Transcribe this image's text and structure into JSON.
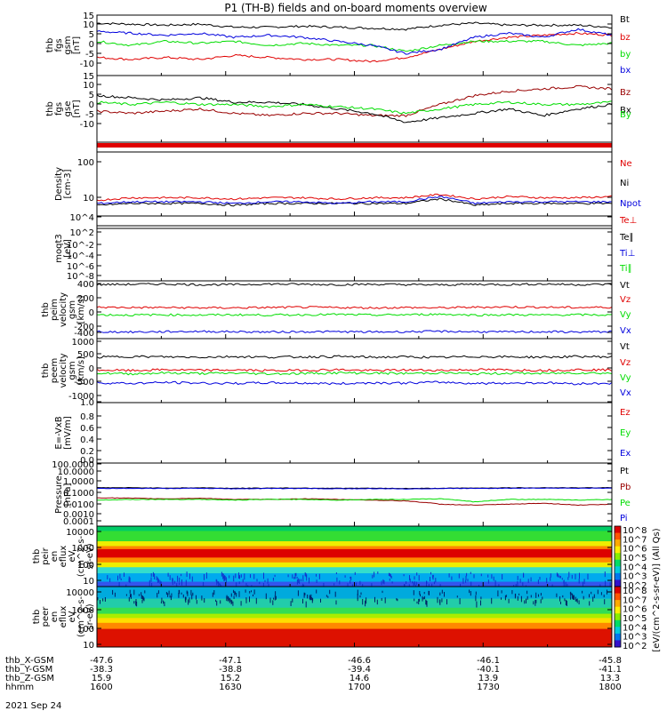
{
  "title": "P1 (TH-B) fields and on-board moments overview",
  "date_label": "2021 Sep 24",
  "colors": {
    "black": "#000000",
    "red": "#e00000",
    "green": "#00dd00",
    "blue": "#0000dd",
    "darkred": "#990000"
  },
  "ephemeris": {
    "rows": [
      {
        "label": "thb_X-GSM",
        "values": [
          "-47.6",
          "-47.1",
          "-46.6",
          "-46.1",
          "-45.8"
        ]
      },
      {
        "label": "thb_Y-GSM",
        "values": [
          "-38.3",
          "-38.8",
          "-39.4",
          "-40.1",
          "-41.1"
        ]
      },
      {
        "label": "thb_Z-GSM",
        "values": [
          "15.9",
          "15.2",
          "14.6",
          "13.9",
          "13.3"
        ]
      },
      {
        "label": "hhmm",
        "values": [
          "1600",
          "1630",
          "1700",
          "1730",
          "1800"
        ]
      }
    ]
  },
  "chart_data": [
    {
      "type": "line",
      "id": "fgs_gsm",
      "ylabel": [
        "thb",
        "fgs",
        "gsm",
        "[nT]"
      ],
      "yticks": [
        "15",
        "10",
        "5",
        "0",
        "-5",
        "-10"
      ],
      "ylim": [
        -15,
        15
      ],
      "legend": [
        {
          "text": "Bt",
          "color": "black"
        },
        {
          "text": "bz",
          "color": "red"
        },
        {
          "text": "by",
          "color": "green"
        },
        {
          "text": "bx",
          "color": "blue"
        }
      ],
      "series": [
        {
          "name": "Bt",
          "color": "black",
          "values": [
            11,
            10.5,
            10,
            10.5,
            9,
            9,
            9.5,
            9,
            8.5,
            8,
            10,
            11,
            10,
            10,
            10,
            9
          ]
        },
        {
          "name": "bz",
          "color": "red",
          "values": [
            -6,
            -7,
            -6,
            -7,
            -5,
            -6,
            -7,
            -7,
            -8,
            -6,
            -2,
            2,
            4,
            5,
            6,
            5
          ]
        },
        {
          "name": "by",
          "color": "green",
          "values": [
            2,
            0,
            2,
            1,
            2,
            0,
            1,
            0,
            0,
            -3,
            0,
            2,
            2,
            2,
            0,
            1
          ]
        },
        {
          "name": "bx",
          "color": "blue",
          "values": [
            7,
            6,
            5,
            6,
            4,
            5,
            4,
            2,
            0,
            -4,
            -2,
            4,
            6,
            4,
            8,
            5
          ]
        }
      ]
    },
    {
      "type": "line",
      "id": "fgs_gse",
      "ylabel": [
        "thb",
        "fgs",
        "gse",
        "[nT]"
      ],
      "yticks": [
        "15",
        "10",
        "5",
        "0",
        "-5",
        "-10"
      ],
      "ylim": [
        -15,
        15
      ],
      "legend": [
        {
          "text": "Bz",
          "color": "darkred"
        },
        {
          "text": "Bx",
          "color": "black"
        },
        {
          "text": "By",
          "color": "green"
        }
      ],
      "series": [
        {
          "name": "Bz",
          "color": "darkred",
          "values": [
            -1,
            -2,
            -1,
            0,
            -2,
            -3,
            -2,
            -2,
            -3,
            -3,
            2,
            6,
            8,
            9,
            10,
            9
          ]
        },
        {
          "name": "Bx",
          "color": "black",
          "values": [
            6,
            5,
            4,
            5,
            3,
            3,
            2,
            0,
            -2,
            -6,
            -4,
            -2,
            0,
            -3,
            0,
            2
          ]
        },
        {
          "name": "By",
          "color": "green",
          "values": [
            3,
            2,
            3,
            2,
            2,
            1,
            2,
            1,
            0,
            -2,
            0,
            2,
            3,
            2,
            2,
            3
          ]
        }
      ]
    },
    {
      "type": "line",
      "id": "density",
      "ylabel": [
        "Density",
        "[cm-3]"
      ],
      "yticks": [
        "100",
        "10"
      ],
      "ylim": [
        4,
        250
      ],
      "yscale": "log",
      "legend": [
        {
          "text": "Ne",
          "color": "red"
        },
        {
          "text": "Ni",
          "color": "black"
        },
        {
          "text": "Npot",
          "color": "blue"
        }
      ],
      "series": [
        {
          "name": "Ne",
          "color": "red",
          "values": [
            11,
            13,
            13,
            13,
            12,
            13,
            13,
            12,
            13,
            13,
            16,
            12,
            14,
            13,
            13,
            14
          ]
        },
        {
          "name": "Ni",
          "color": "black",
          "values": [
            8,
            9,
            9,
            9,
            8,
            9,
            9,
            9,
            9,
            9,
            12,
            8,
            9,
            9,
            9,
            9
          ]
        },
        {
          "name": "Npot",
          "color": "blue",
          "values": [
            9,
            10,
            10,
            10,
            9,
            10,
            10,
            9,
            10,
            10,
            14,
            9,
            10,
            10,
            10,
            10
          ]
        }
      ]
    },
    {
      "type": "line",
      "id": "temperature",
      "ylabel": [
        "moqt3",
        "[eV]"
      ],
      "yticks": [
        "10^4",
        "10^2",
        "10^-2",
        "10^-4",
        "10^-6",
        "10^-8"
      ],
      "yscale": "log",
      "legend": [
        {
          "text": "Te⊥",
          "color": "red"
        },
        {
          "text": "Te∥",
          "color": "black"
        },
        {
          "text": "Ti⊥",
          "color": "blue"
        },
        {
          "text": "Ti∥",
          "color": "green"
        }
      ],
      "series": []
    },
    {
      "type": "line",
      "id": "peim_velocity",
      "ylabel": [
        "thb",
        "peim",
        "velocity",
        "gsm",
        "[km/s]"
      ],
      "yticks": [
        "400",
        "200",
        "0",
        "-200",
        "-400"
      ],
      "ylim": [
        -460,
        460
      ],
      "legend": [
        {
          "text": "Vt",
          "color": "black"
        },
        {
          "text": "Vz",
          "color": "red"
        },
        {
          "text": "Vy",
          "color": "green"
        },
        {
          "text": "Vx",
          "color": "blue"
        }
      ],
      "series": [
        {
          "name": "Vt",
          "color": "black",
          "values": [
            400,
            405,
            410,
            400,
            400,
            410,
            405,
            400,
            405,
            400,
            395,
            405,
            400,
            410,
            400,
            405
          ]
        },
        {
          "name": "Vz",
          "color": "red",
          "values": [
            40,
            35,
            35,
            30,
            30,
            35,
            40,
            35,
            30,
            35,
            30,
            40,
            45,
            40,
            35,
            40
          ]
        },
        {
          "name": "Vy",
          "color": "green",
          "values": [
            -80,
            -85,
            -80,
            -85,
            -80,
            -85,
            -80,
            -75,
            -85,
            -80,
            -70,
            -85,
            -80,
            -85,
            -80,
            -85
          ]
        },
        {
          "name": "Vx",
          "color": "blue",
          "values": [
            -350,
            -355,
            -350,
            -345,
            -350,
            -355,
            -350,
            -350,
            -355,
            -350,
            -345,
            -350,
            -355,
            -350,
            -355,
            -350
          ]
        }
      ]
    },
    {
      "type": "line",
      "id": "peem_velocity",
      "ylabel": [
        "thb",
        "peem",
        "velocity",
        "gsm",
        "[km/s]"
      ],
      "yticks": [
        "1000",
        "500",
        "0",
        "-500",
        "-1000"
      ],
      "ylim": [
        -1000,
        1000
      ],
      "legend": [
        {
          "text": "Vt",
          "color": "black"
        },
        {
          "text": "Vz",
          "color": "red"
        },
        {
          "text": "Vy",
          "color": "green"
        },
        {
          "text": "Vx",
          "color": "blue"
        }
      ],
      "series": [
        {
          "name": "Vt",
          "color": "black",
          "values": [
            420,
            440,
            430,
            420,
            440,
            420,
            430,
            440,
            420,
            430,
            410,
            440,
            430,
            420,
            440,
            430
          ]
        },
        {
          "name": "Vz",
          "color": "red",
          "values": [
            20,
            0,
            30,
            10,
            20,
            0,
            10,
            30,
            0,
            20,
            10,
            30,
            20,
            10,
            30,
            20
          ]
        },
        {
          "name": "Vy",
          "color": "green",
          "values": [
            -80,
            -100,
            -70,
            -90,
            -80,
            -100,
            -90,
            -70,
            -80,
            -90,
            -70,
            -100,
            -80,
            -90,
            -70,
            -80
          ]
        },
        {
          "name": "Vx",
          "color": "blue",
          "values": [
            -380,
            -400,
            -370,
            -390,
            -400,
            -380,
            -390,
            -410,
            -380,
            -390,
            -360,
            -400,
            -390,
            -380,
            -410,
            -390
          ]
        }
      ]
    },
    {
      "type": "line",
      "id": "e_field",
      "ylabel": [
        "E=-VxB",
        "[mV/m]"
      ],
      "yticks": [
        "1.0",
        "0.8",
        "0.6",
        "0.4",
        "0.2",
        "0.0"
      ],
      "ylim": [
        0,
        1
      ],
      "legend": [
        {
          "text": "Ez",
          "color": "red"
        },
        {
          "text": "Ey",
          "color": "green"
        },
        {
          "text": "Ex",
          "color": "blue"
        }
      ],
      "series": []
    },
    {
      "type": "line",
      "id": "pressure",
      "ylabel": [
        "Pressure",
        "[nPa]"
      ],
      "yticks": [
        "100.0000",
        "10.0000",
        "1.0000",
        "0.1000",
        "0.0100",
        "0.0010",
        "0.0001"
      ],
      "ylim": [
        0.0001,
        100
      ],
      "yscale": "log",
      "legend": [
        {
          "text": "Pt",
          "color": "black"
        },
        {
          "text": "Pb",
          "color": "darkred"
        },
        {
          "text": "Pe",
          "color": "green"
        },
        {
          "text": "Pi",
          "color": "blue"
        }
      ],
      "series": [
        {
          "name": "Pt",
          "color": "black",
          "values": [
            0.45,
            0.45,
            0.42,
            0.44,
            0.4,
            0.42,
            0.42,
            0.4,
            0.4,
            0.38,
            0.4,
            0.42,
            0.44,
            0.45,
            0.44,
            0.45
          ]
        },
        {
          "name": "Pb",
          "color": "darkred",
          "values": [
            0.05,
            0.045,
            0.04,
            0.045,
            0.035,
            0.035,
            0.04,
            0.035,
            0.03,
            0.025,
            0.012,
            0.01,
            0.012,
            0.015,
            0.01,
            0.012
          ]
        },
        {
          "name": "Pe",
          "color": "green",
          "values": [
            0.03,
            0.035,
            0.035,
            0.035,
            0.03,
            0.035,
            0.035,
            0.03,
            0.035,
            0.035,
            0.04,
            0.02,
            0.035,
            0.035,
            0.03,
            0.035
          ]
        },
        {
          "name": "Pi",
          "color": "blue",
          "values": [
            0.38,
            0.4,
            0.38,
            0.4,
            0.36,
            0.38,
            0.38,
            0.36,
            0.37,
            0.35,
            0.38,
            0.4,
            0.4,
            0.42,
            0.4,
            0.41
          ]
        }
      ]
    },
    {
      "type": "heatmap",
      "id": "peir_eflux",
      "ylabel": [
        "thb",
        "peir",
        "en",
        "eflux",
        "eV",
        "(cm^2-s-",
        "sr-eV)"
      ],
      "yticks": [
        "10000",
        "1000",
        "100",
        "10"
      ],
      "yscale": "log",
      "colorbar_ticks": [
        "10^8",
        "10^7",
        "10^6",
        "10^5",
        "10^4",
        "10^3",
        "10^2"
      ]
    },
    {
      "type": "heatmap",
      "id": "peer_eflux",
      "ylabel": [
        "thb",
        "peer",
        "en",
        "eflux",
        "eV",
        "(cm^2-s-",
        "sr-eV)"
      ],
      "yticks": [
        "10000",
        "1000",
        "100",
        "10"
      ],
      "yscale": "log",
      "colorbar_ticks": [
        "10^8",
        "10^7",
        "10^6",
        "10^5",
        "10^4",
        "10^3",
        "10^2"
      ],
      "colorbar_label": "[eV/(cm^2-s-sr-eV)] (All Qs)"
    }
  ]
}
